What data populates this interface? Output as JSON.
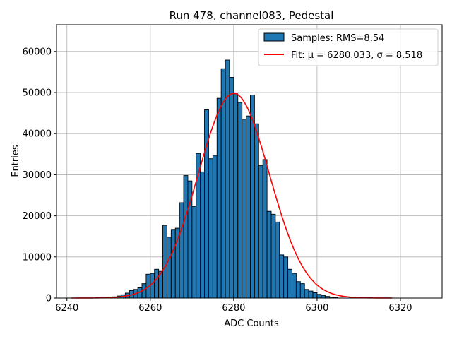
{
  "chart_data": {
    "type": "bar",
    "title": "Run 478, channel083, Pedestal",
    "xlabel": "ADC Counts",
    "ylabel": "Entries",
    "xlim": [
      6237.5,
      6330
    ],
    "ylim": [
      0,
      66500
    ],
    "xticks": [
      6240,
      6260,
      6280,
      6300,
      6320
    ],
    "yticks": [
      0,
      10000,
      20000,
      30000,
      40000,
      50000,
      60000
    ],
    "grid": true,
    "legend_position": "top-right",
    "colors": {
      "bars": "#1f77b4",
      "bar_edge": "#000000",
      "fit": "#ff0000",
      "grid": "#b0b0b0"
    },
    "bin_width": 1,
    "bin_start": 6250,
    "values": [
      150,
      300,
      500,
      800,
      1200,
      1800,
      2100,
      2500,
      3500,
      5800,
      6000,
      7000,
      6500,
      17700,
      14800,
      16700,
      17000,
      23200,
      29800,
      28500,
      22300,
      35200,
      30700,
      45800,
      33900,
      34700,
      48600,
      55800,
      57900,
      53700,
      49700,
      47600,
      43500,
      44300,
      49400,
      42400,
      32200,
      33700,
      21100,
      20400,
      18500,
      10500,
      10000,
      7000,
      6000,
      4000,
      3500,
      2100,
      1700,
      1300,
      900,
      650,
      400,
      200,
      100
    ],
    "series": [
      {
        "name": "Samples: RMS=8.54",
        "kind": "histogram"
      },
      {
        "name": "Fit: μ = 6280.033, σ = 8.518",
        "kind": "line",
        "mu": 6280.033,
        "sigma": 8.518,
        "amplitude": 49800,
        "x_range": [
          6241,
          6318
        ]
      }
    ]
  }
}
